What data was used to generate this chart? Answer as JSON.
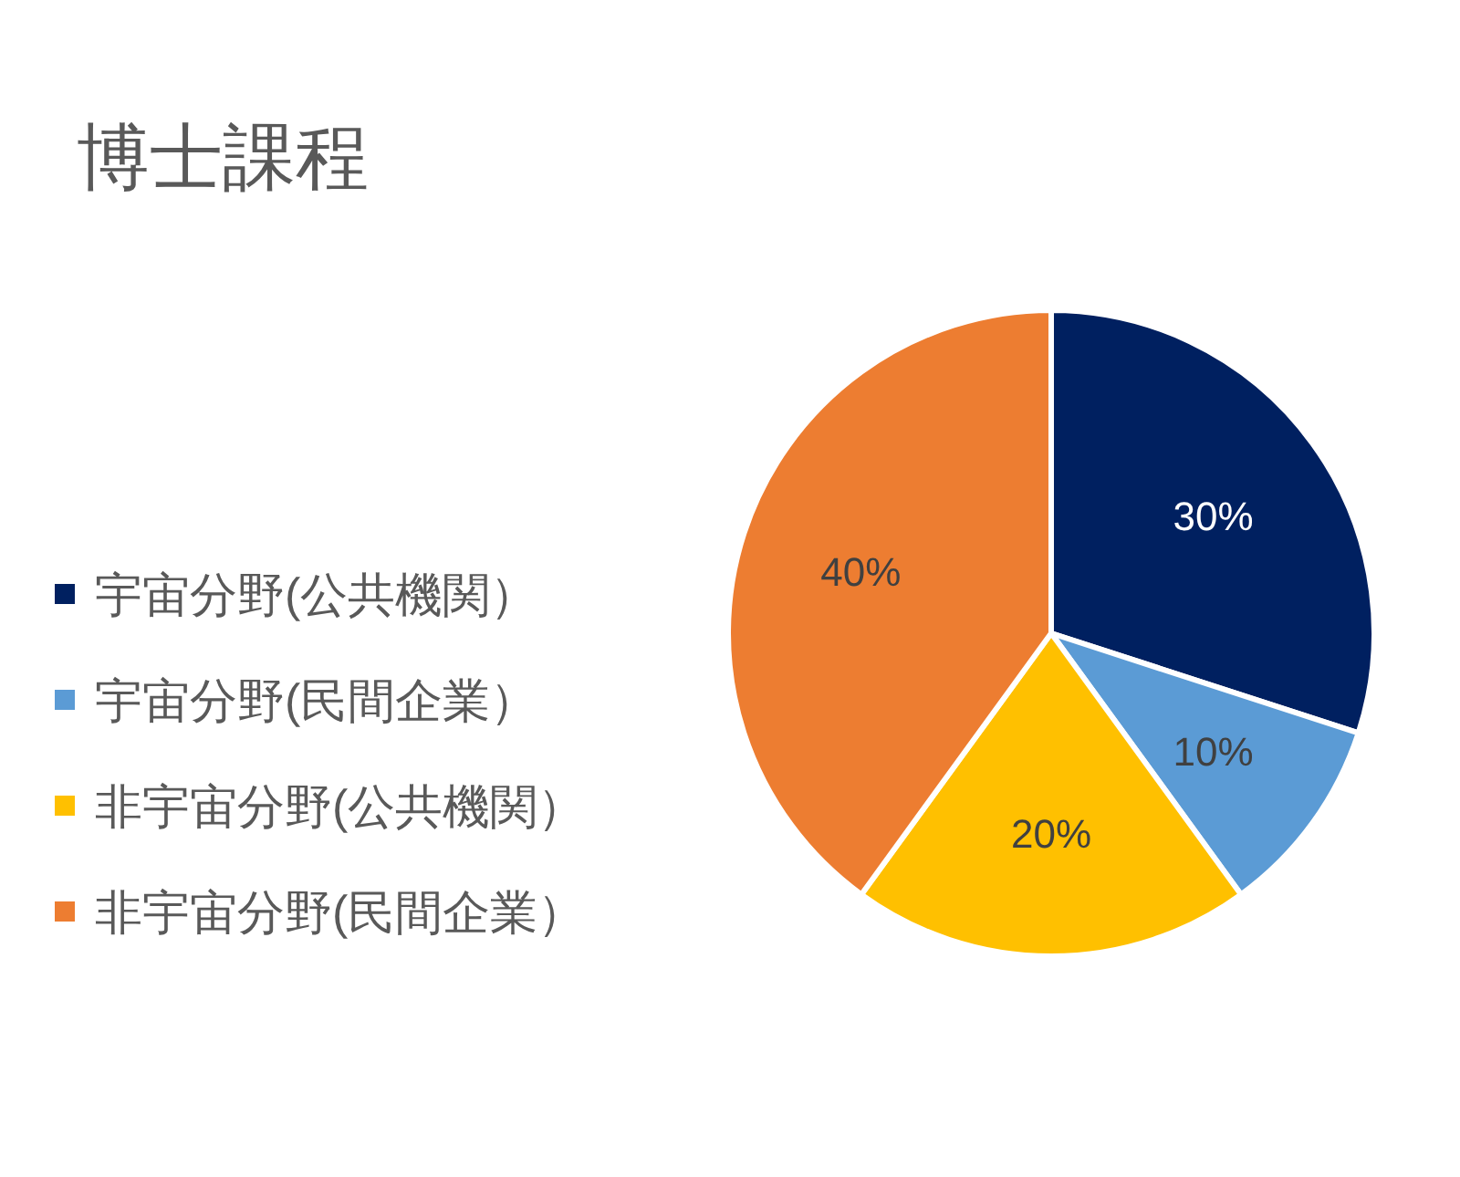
{
  "chart_data": {
    "type": "pie",
    "title": "博士課程",
    "categories": [
      "宇宙分野(公共機関）",
      "宇宙分野(民間企業）",
      "非宇宙分野(公共機関）",
      "非宇宙分野(民間企業）"
    ],
    "values": [
      30,
      10,
      20,
      40
    ],
    "colors": [
      "#002060",
      "#5b9bd5",
      "#ffc000",
      "#ed7d31"
    ],
    "value_labels": [
      "30%",
      "10%",
      "20%",
      "40%"
    ],
    "legend": "left"
  }
}
